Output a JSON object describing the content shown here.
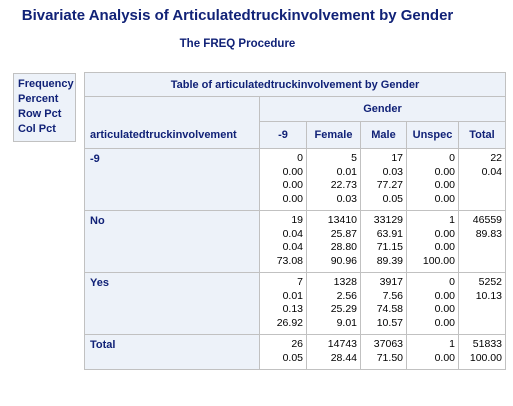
{
  "title": "Bivariate Analysis of Articulatedtruckinvolvement by Gender",
  "subtitle": "The FREQ Procedure",
  "legend": [
    "Frequency",
    "Percent",
    "Row Pct",
    "Col Pct"
  ],
  "table": {
    "caption": "Table of articulatedtruckinvolvement by Gender",
    "col_group": "Gender",
    "row_var": "articulatedtruckinvolvement",
    "columns": [
      "-9",
      "Female",
      "Male",
      "Unspec",
      "Total"
    ],
    "rows": [
      {
        "label": "-9",
        "cells": [
          [
            "0",
            "0.00",
            "0.00",
            "0.00"
          ],
          [
            "5",
            "0.01",
            "22.73",
            "0.03"
          ],
          [
            "17",
            "0.03",
            "77.27",
            "0.05"
          ],
          [
            "0",
            "0.00",
            "0.00",
            "0.00"
          ],
          [
            "22",
            "0.04",
            "",
            ""
          ]
        ]
      },
      {
        "label": "No",
        "cells": [
          [
            "19",
            "0.04",
            "0.04",
            "73.08"
          ],
          [
            "13410",
            "25.87",
            "28.80",
            "90.96"
          ],
          [
            "33129",
            "63.91",
            "71.15",
            "89.39"
          ],
          [
            "1",
            "0.00",
            "0.00",
            "100.00"
          ],
          [
            "46559",
            "89.83",
            "",
            ""
          ]
        ]
      },
      {
        "label": "Yes",
        "cells": [
          [
            "7",
            "0.01",
            "0.13",
            "26.92"
          ],
          [
            "1328",
            "2.56",
            "25.29",
            "9.01"
          ],
          [
            "3917",
            "7.56",
            "74.58",
            "10.57"
          ],
          [
            "0",
            "0.00",
            "0.00",
            "0.00"
          ],
          [
            "5252",
            "10.13",
            "",
            ""
          ]
        ]
      },
      {
        "label": "Total",
        "cells": [
          [
            "26",
            "0.05"
          ],
          [
            "14743",
            "28.44"
          ],
          [
            "37063",
            "71.50"
          ],
          [
            "1",
            "0.00"
          ],
          [
            "51833",
            "100.00"
          ]
        ]
      }
    ]
  }
}
